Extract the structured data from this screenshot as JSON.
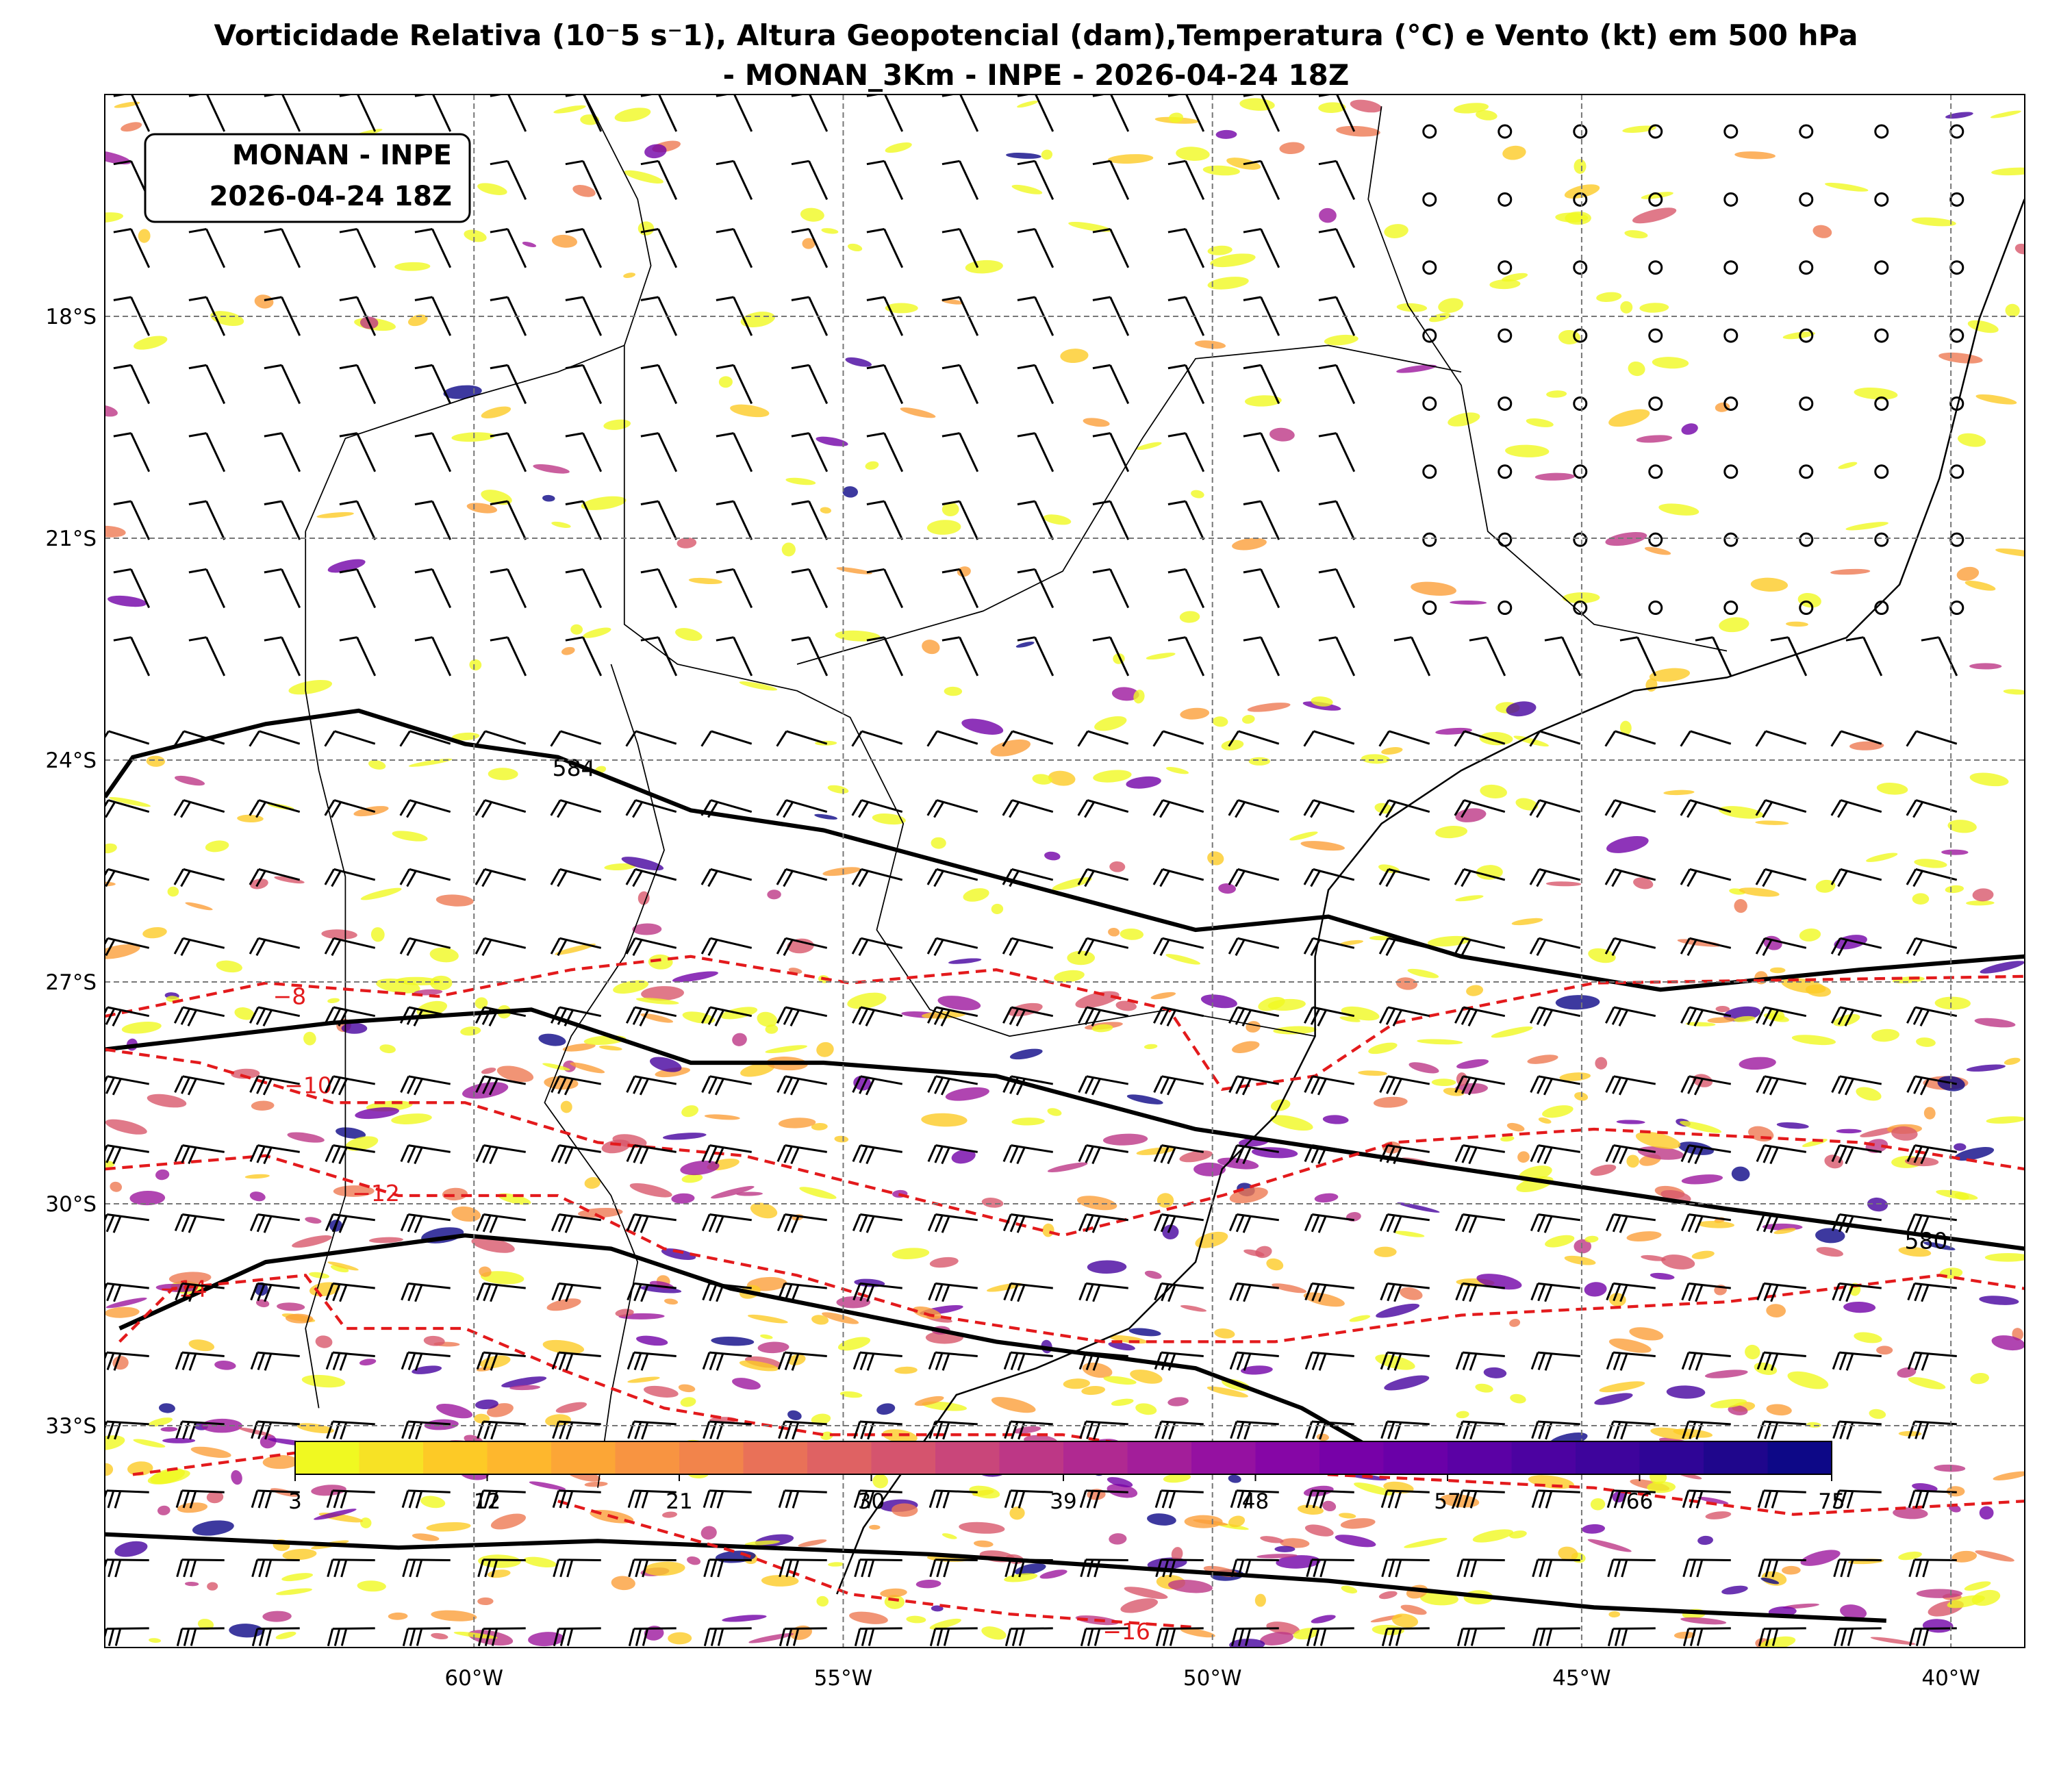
{
  "title": [
    "Vorticidade Relativa (10⁻5 s⁻1), Altura Geopotencial (dam),Temperatura (°C) e Vento (kt) em 500 hPa",
    "- MONAN_3Km - INPE - 2026-04-24 18Z"
  ],
  "info_box": [
    "MONAN - INPE",
    "2026-04-24 18Z"
  ],
  "map": {
    "xlim": [
      -65,
      -39
    ],
    "ylim": [
      -36,
      -15
    ],
    "xticks": [
      {
        "value": -60,
        "label": "60°W"
      },
      {
        "value": -55,
        "label": "55°W"
      },
      {
        "value": -50,
        "label": "50°W"
      },
      {
        "value": -45,
        "label": "45°W"
      },
      {
        "value": -40,
        "label": "40°W"
      }
    ],
    "yticks": [
      {
        "value": -18,
        "label": "18°S"
      },
      {
        "value": -21,
        "label": "21°S"
      },
      {
        "value": -24,
        "label": "24°S"
      },
      {
        "value": -27,
        "label": "27°S"
      },
      {
        "value": -30,
        "label": "30°S"
      },
      {
        "value": -33,
        "label": "33°S"
      }
    ],
    "contour_labels": [
      "584",
      "580",
      "−8",
      "−10",
      "−12",
      "−14",
      "−16"
    ]
  },
  "colorbar": {
    "range": [
      3,
      75
    ],
    "ticks": [
      3,
      12,
      21,
      30,
      39,
      48,
      57,
      66,
      75
    ]
  }
}
